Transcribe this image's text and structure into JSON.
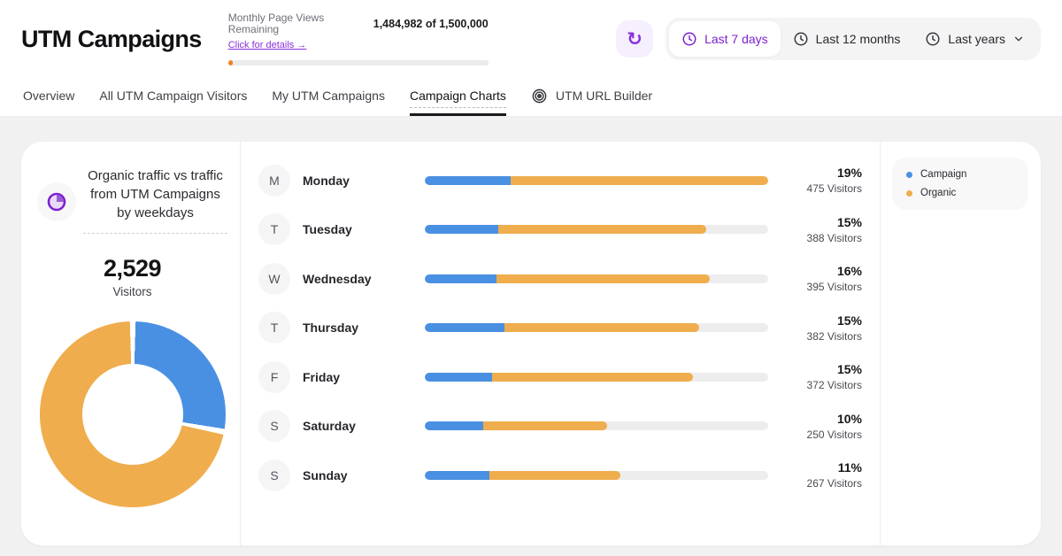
{
  "header": {
    "title": "UTM Campaigns",
    "pageviews": {
      "label": "Monthly Page Views Remaining",
      "link": "Click for details →",
      "count": "1,484,982 of 1,500,000",
      "used_pct": 1.5,
      "fill_color": "#F28022"
    },
    "ranges": [
      {
        "label": "Last 7 days",
        "active": true,
        "has_chevron": false
      },
      {
        "label": "Last 12 months",
        "active": false,
        "has_chevron": false
      },
      {
        "label": "Last years",
        "active": false,
        "has_chevron": true
      }
    ]
  },
  "icons": {
    "refresh": "↻"
  },
  "tabs": [
    {
      "label": "Overview",
      "active": false,
      "has_icon": false
    },
    {
      "label": "All UTM Campaign Visitors",
      "active": false,
      "has_icon": false
    },
    {
      "label": "My UTM Campaigns",
      "active": false,
      "has_icon": false
    },
    {
      "label": "Campaign Charts",
      "active": true,
      "has_icon": false
    },
    {
      "label": "UTM URL Builder",
      "active": false,
      "has_icon": true
    }
  ],
  "panel": {
    "title": "Organic traffic vs traffic from UTM Campaigns by weekdays",
    "total": "2,529",
    "total_label": "Visitors"
  },
  "legend": [
    {
      "label": "Campaign",
      "color": "#4A90E2"
    },
    {
      "label": "Organic",
      "color": "#EFAD4D"
    }
  ],
  "colors": {
    "accent_purple": "#7E22CE",
    "campaign_blue": "#4A90E2",
    "organic_orange": "#EFAD4D",
    "track_gray": "#EDEDEE"
  },
  "chart_data": [
    {
      "type": "pie",
      "variant": "donut",
      "title": "Organic traffic vs traffic from UTM Campaigns by weekdays",
      "center_value": "2,529",
      "center_label": "Visitors",
      "total_visitors": 2529,
      "legend_position": "right",
      "series": [
        {
          "name": "Campaign",
          "pct": 28,
          "color": "#4A90E2"
        },
        {
          "name": "Organic",
          "pct": 72,
          "color": "#EFAD4D"
        }
      ]
    },
    {
      "type": "bar",
      "orientation": "horizontal",
      "stacked": true,
      "series_names": [
        "Campaign",
        "Organic"
      ],
      "note": "fill_pct = bar length vs track (visitors/475); campaign_pct = blue share of the filled bar, estimated from pixels",
      "rows": [
        {
          "initial": "M",
          "day": "Monday",
          "percent": "19%",
          "visitors": "475 Visitors",
          "visitors_n": 475,
          "fill_pct": 100,
          "campaign_pct": 25
        },
        {
          "initial": "T",
          "day": "Tuesday",
          "percent": "15%",
          "visitors": "388 Visitors",
          "visitors_n": 388,
          "fill_pct": 82,
          "campaign_pct": 26
        },
        {
          "initial": "W",
          "day": "Wednesday",
          "percent": "16%",
          "visitors": "395 Visitors",
          "visitors_n": 395,
          "fill_pct": 83,
          "campaign_pct": 25
        },
        {
          "initial": "T",
          "day": "Thursday",
          "percent": "15%",
          "visitors": "382 Visitors",
          "visitors_n": 382,
          "fill_pct": 80,
          "campaign_pct": 29
        },
        {
          "initial": "F",
          "day": "Friday",
          "percent": "15%",
          "visitors": "372 Visitors",
          "visitors_n": 372,
          "fill_pct": 78,
          "campaign_pct": 25
        },
        {
          "initial": "S",
          "day": "Saturday",
          "percent": "10%",
          "visitors": "250 Visitors",
          "visitors_n": 250,
          "fill_pct": 53,
          "campaign_pct": 32
        },
        {
          "initial": "S",
          "day": "Sunday",
          "percent": "11%",
          "visitors": "267 Visitors",
          "visitors_n": 267,
          "fill_pct": 57,
          "campaign_pct": 33
        }
      ]
    }
  ]
}
